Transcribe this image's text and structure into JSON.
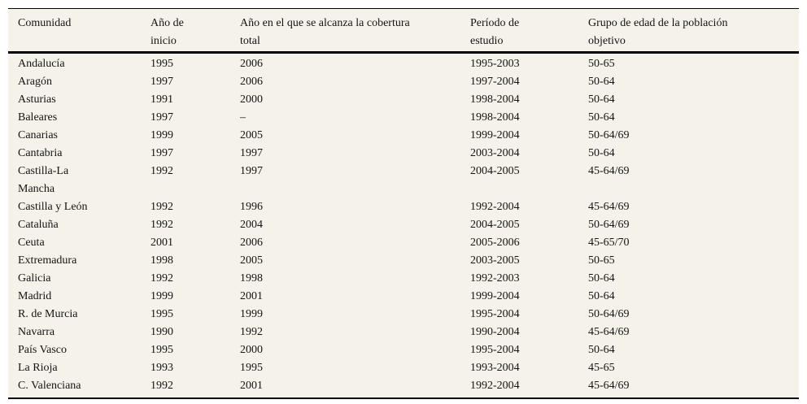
{
  "page": {
    "background_color": "#ffffff",
    "table_background_color": "#f5f2e9",
    "rule_color": "#000000",
    "text_color": "#141414"
  },
  "table": {
    "columns": [
      {
        "id": "comunidad",
        "lines": [
          "Comunidad"
        ]
      },
      {
        "id": "anio-de-inicio",
        "lines": [
          "Año de",
          "inicio"
        ]
      },
      {
        "id": "anio-cobertura-total",
        "lines": [
          "Año en el que se alcanza la cobertura",
          "total"
        ]
      },
      {
        "id": "periodo-de-estudio",
        "lines": [
          "Período de",
          "estudio"
        ]
      },
      {
        "id": "grupo-edad-poblacion-objetivo",
        "lines": [
          "Grupo de edad de la población",
          "objetivo"
        ]
      }
    ],
    "rows": [
      [
        "Andalucía",
        "1995",
        "2006",
        "1995-2003",
        "50-65"
      ],
      [
        "Aragón",
        "1997",
        "2006",
        "1997-2004",
        "50-64"
      ],
      [
        "Asturias",
        "1991",
        "2000",
        "1998-2004",
        "50-64"
      ],
      [
        "Baleares",
        "1997",
        "–",
        "1998-2004",
        "50-64"
      ],
      [
        "Canarias",
        "1999",
        "2005",
        "1999-2004",
        "50-64/69"
      ],
      [
        "Cantabria",
        "1997",
        "1997",
        "2003-2004",
        "50-64"
      ],
      [
        [
          "Castilla-La",
          "Mancha"
        ],
        "1992",
        "1997",
        "2004-2005",
        "45-64/69"
      ],
      [
        "Castilla y León",
        "1992",
        "1996",
        "1992-2004",
        "45-64/69"
      ],
      [
        "Cataluña",
        "1992",
        "2004",
        "2004-2005",
        "50-64/69"
      ],
      [
        "Ceuta",
        "2001",
        "2006",
        "2005-2006",
        "45-65/70"
      ],
      [
        "Extremadura",
        "1998",
        "2005",
        "2003-2005",
        "50-65"
      ],
      [
        "Galicia",
        "1992",
        "1998",
        "1992-2003",
        "50-64"
      ],
      [
        "Madrid",
        "1999",
        "2001",
        "1999-2004",
        "50-64"
      ],
      [
        "R. de Murcia",
        "1995",
        "1999",
        "1995-2004",
        "50-64/69"
      ],
      [
        "Navarra",
        "1990",
        "1992",
        "1990-2004",
        "45-64/69"
      ],
      [
        "País Vasco",
        "1995",
        "2000",
        "1995-2004",
        "50-64"
      ],
      [
        "La Rioja",
        "1993",
        "1995",
        "1993-2004",
        "45-65"
      ],
      [
        "C. Valenciana",
        "1992",
        "2001",
        "1992-2004",
        "45-64/69"
      ]
    ]
  }
}
